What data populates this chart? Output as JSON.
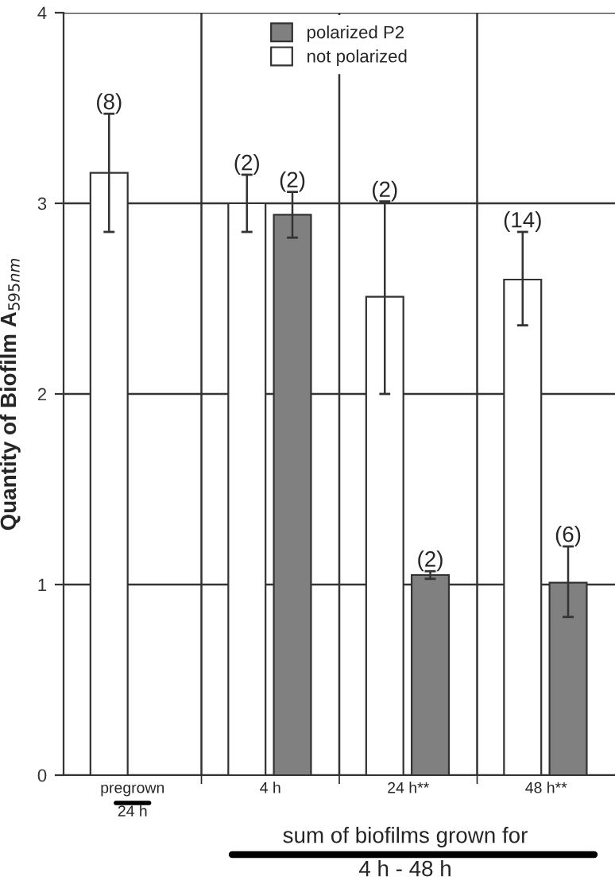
{
  "chart_data": {
    "type": "bar",
    "categories": [
      "pregrown\n24 h",
      "4 h",
      "24 h**",
      "48 h**"
    ],
    "series": [
      {
        "name": "not polarized",
        "color": "#ffffff",
        "values": [
          3.16,
          3.0,
          2.51,
          2.6
        ],
        "errors": [
          [
            2.85,
            3.47
          ],
          [
            2.85,
            3.15
          ],
          [
            2.0,
            3.01
          ],
          [
            2.36,
            2.85
          ]
        ]
      },
      {
        "name": "polarized P2",
        "color": "#808080",
        "values": [
          null,
          2.94,
          1.05,
          1.01
        ],
        "errors": [
          null,
          [
            2.82,
            3.06
          ],
          [
            1.03,
            1.07
          ],
          [
            0.83,
            1.2
          ]
        ]
      }
    ],
    "ylabel": "Quantity of Biofilm A$_{595nm}$",
    "ylim": [
      0,
      4
    ],
    "yticks": [
      0,
      1,
      2,
      3,
      4
    ],
    "grid": true,
    "legend": "top",
    "annotations": [
      "(8)",
      "(2)",
      "(2)",
      "(2)",
      "(2)",
      "(14)",
      "(6)",
      "sum of biofilms grown for",
      "4 h - 48 h"
    ]
  }
}
